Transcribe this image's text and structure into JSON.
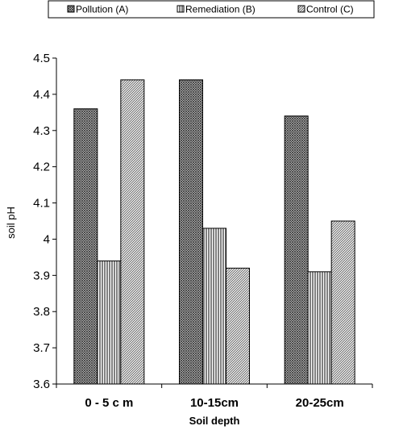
{
  "chart_data": {
    "type": "bar",
    "categories": [
      "0-5cm",
      "10-15cm",
      "20-25cm"
    ],
    "category_labels": [
      "0 - 5 c m",
      "10-15cm",
      "20-25cm"
    ],
    "series": [
      {
        "name": "Pollution (A)",
        "values": [
          4.36,
          4.44,
          4.34
        ],
        "pattern": "crosshatch"
      },
      {
        "name": "Remediation (B)",
        "values": [
          3.94,
          4.03,
          3.91
        ],
        "pattern": "vertical-lines"
      },
      {
        "name": "Control (C)",
        "values": [
          4.44,
          3.92,
          4.05
        ],
        "pattern": "diagonal-lines"
      }
    ],
    "title": "",
    "xlabel": "Soil depth",
    "ylabel": "soil pH",
    "ylim": [
      3.6,
      4.5
    ],
    "yticks": [
      "3.6",
      "3.7",
      "3.8",
      "3.9",
      "4",
      "4.1",
      "4.2",
      "4.3",
      "4.4",
      "4.5"
    ],
    "grid": false,
    "legend_position": "top",
    "colors": {
      "bar_stroke": "#000000",
      "pattern": "#555555",
      "background": "#ffffff"
    }
  }
}
